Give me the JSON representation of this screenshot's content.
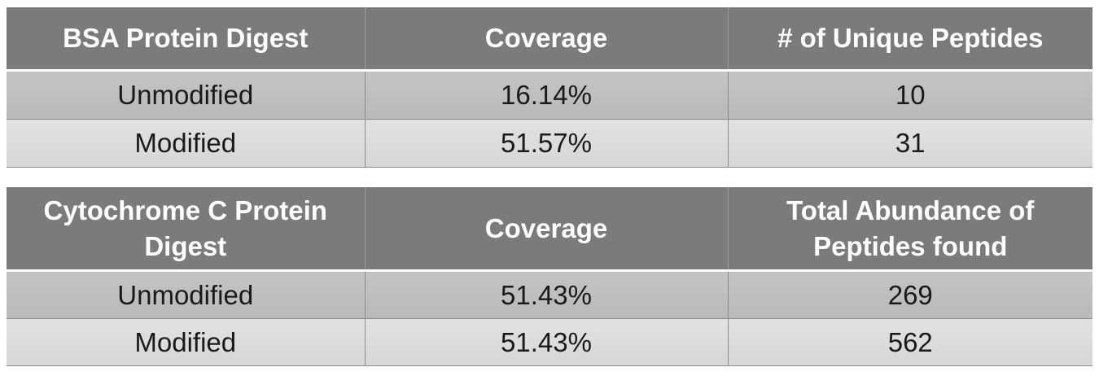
{
  "bsa_table": {
    "headers": [
      "BSA Protein Digest",
      "Coverage",
      "# of Unique Peptides"
    ],
    "rows": [
      [
        "Unmodified",
        "16.14%",
        "10"
      ],
      [
        "Modified",
        "51.57%",
        "31"
      ]
    ]
  },
  "cytochrome_table": {
    "headers": [
      "Cytochrome C Protein Digest",
      "Coverage",
      "Total Abundance of Peptides found"
    ],
    "rows": [
      [
        "Unmodified",
        "51.43%",
        "269"
      ],
      [
        "Modified",
        "51.43%",
        "562"
      ]
    ]
  }
}
